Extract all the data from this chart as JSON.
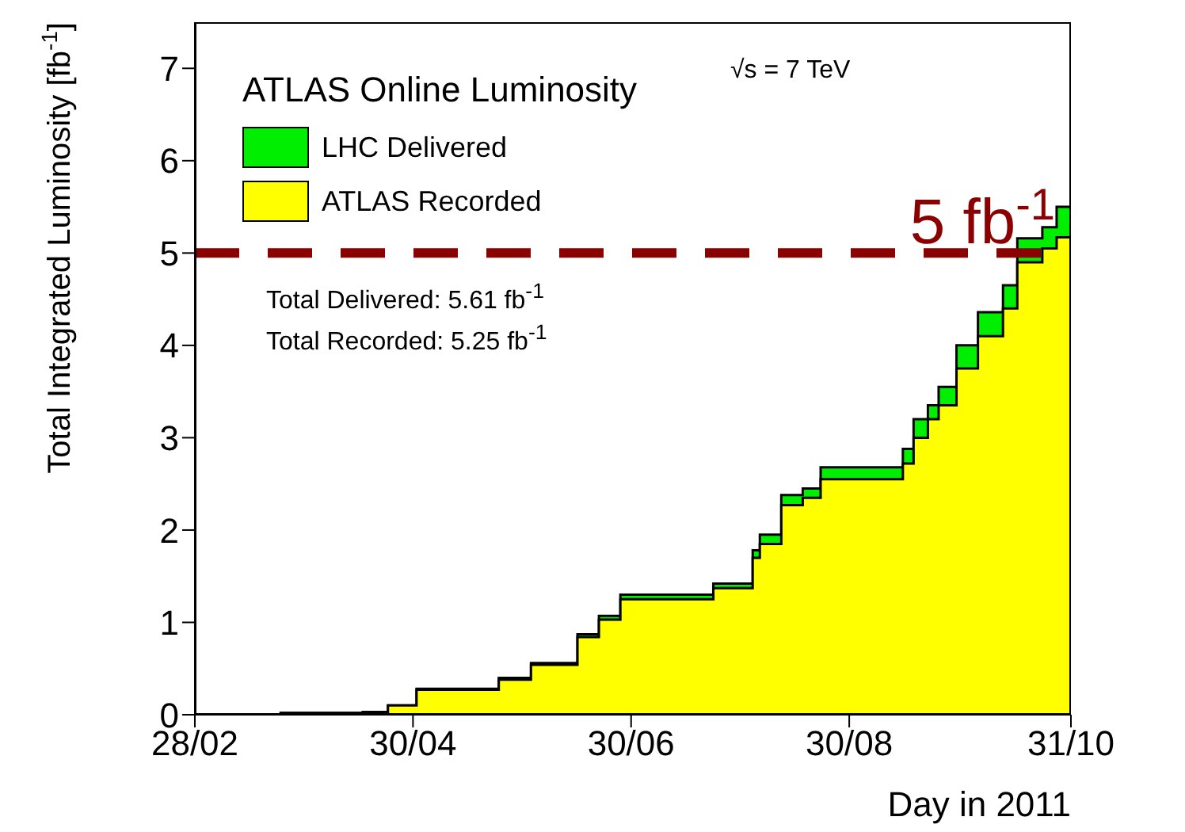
{
  "chart_data": {
    "type": "area",
    "legend_title": "ATLAS Online Luminosity",
    "xlabel": "Day in 2011",
    "ylabel": "Total Integrated Luminosity [fb$^{-1}$]",
    "x": [
      "2011-02-28",
      "2011-03-24",
      "2011-04-16",
      "2011-04-23",
      "2011-05-01",
      "2011-05-20",
      "2011-05-24",
      "2011-06-02",
      "2011-06-15",
      "2011-06-21",
      "2011-06-27",
      "2011-07-17",
      "2011-07-23",
      "2011-08-03",
      "2011-08-05",
      "2011-08-11",
      "2011-08-17",
      "2011-08-22",
      "2011-09-08",
      "2011-09-14",
      "2011-09-17",
      "2011-09-21",
      "2011-09-24",
      "2011-09-29",
      "2011-10-05",
      "2011-10-12",
      "2011-10-16",
      "2011-10-23",
      "2011-10-27",
      "2011-10-31"
    ],
    "series": [
      {
        "name": "LHC Delivered",
        "color": "#00ee00",
        "values": [
          0,
          0.02,
          0.03,
          0.1,
          0.28,
          0.28,
          0.4,
          0.56,
          0.87,
          1.07,
          1.3,
          1.3,
          1.42,
          1.78,
          1.95,
          2.38,
          2.45,
          2.68,
          2.68,
          2.88,
          3.2,
          3.35,
          3.55,
          4.0,
          4.36,
          4.65,
          5.16,
          5.28,
          5.5,
          5.61
        ]
      },
      {
        "name": "ATLAS Recorded",
        "color": "#ffff00",
        "values": [
          0,
          0.02,
          0.03,
          0.1,
          0.27,
          0.27,
          0.38,
          0.54,
          0.84,
          1.03,
          1.25,
          1.25,
          1.37,
          1.7,
          1.85,
          2.27,
          2.35,
          2.55,
          2.55,
          2.72,
          3.0,
          3.2,
          3.35,
          3.75,
          4.1,
          4.4,
          4.9,
          5.05,
          5.17,
          5.25
        ]
      }
    ],
    "xlim": [
      "2011-02-28",
      "2011-10-31"
    ],
    "xticks": [
      {
        "value": "2011-02-28",
        "label": "28/02"
      },
      {
        "value": "2011-04-30",
        "label": "30/04"
      },
      {
        "value": "2011-06-30",
        "label": "30/06"
      },
      {
        "value": "2011-08-30",
        "label": "30/08"
      },
      {
        "value": "2011-10-31",
        "label": "31/10"
      }
    ],
    "ylim": [
      0,
      7.5
    ],
    "yticks": [
      0,
      1,
      2,
      3,
      4,
      5,
      6,
      7
    ],
    "ref_lines": [
      {
        "axis": "y",
        "value": 5,
        "label": "5 fb$^{-1}$",
        "color": "#8b0000",
        "line_style": "dashed"
      }
    ],
    "annotations": [
      "√s = 7 TeV",
      "Total Delivered: 5.61 fb$^{-1}$",
      "Total Recorded: 5.25 fb$^{-1}$"
    ],
    "legend": "top left",
    "grid": false
  }
}
